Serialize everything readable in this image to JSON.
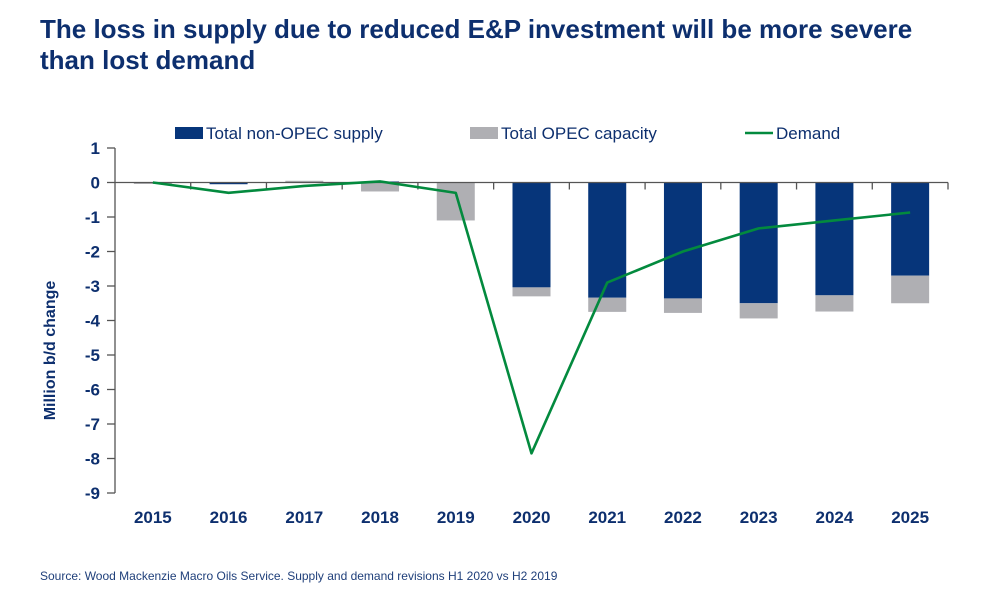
{
  "chart_data": {
    "type": "bar",
    "title": "The loss in supply due to reduced E&P investment will be more severe than lost demand",
    "source": "Source: Wood Mackenzie Macro Oils Service.   Supply and demand revisions H1 2020 vs H2 2019",
    "ylabel": "Million b/d change",
    "xlabel": "",
    "ylim": [
      -9,
      1
    ],
    "yticks": [
      1,
      0,
      -1,
      -2,
      -3,
      -4,
      -5,
      -6,
      -7,
      -8,
      -9
    ],
    "grid": false,
    "legend_position": "top",
    "stacked": true,
    "categories": [
      "2015",
      "2016",
      "2017",
      "2018",
      "2019",
      "2020",
      "2021",
      "2022",
      "2023",
      "2024",
      "2025"
    ],
    "series": [
      {
        "name": "Total non-OPEC supply",
        "kind": "bar",
        "color": "#06357a",
        "values": [
          0,
          -0.05,
          0,
          0.03,
          0,
          -3.04,
          -3.34,
          -3.36,
          -3.5,
          -3.27,
          -2.7
        ]
      },
      {
        "name": "Total OPEC capacity",
        "kind": "bar",
        "color": "#afafb3",
        "values": [
          -0.03,
          0,
          0.05,
          -0.26,
          -1.1,
          -0.26,
          -0.41,
          -0.42,
          -0.44,
          -0.47,
          -0.8
        ]
      },
      {
        "name": "Demand",
        "kind": "line",
        "color": "#038a3e",
        "values": [
          0,
          -0.3,
          -0.1,
          0.03,
          -0.3,
          -7.85,
          -2.9,
          -2.0,
          -1.33,
          -1.1,
          -0.87
        ]
      }
    ]
  }
}
